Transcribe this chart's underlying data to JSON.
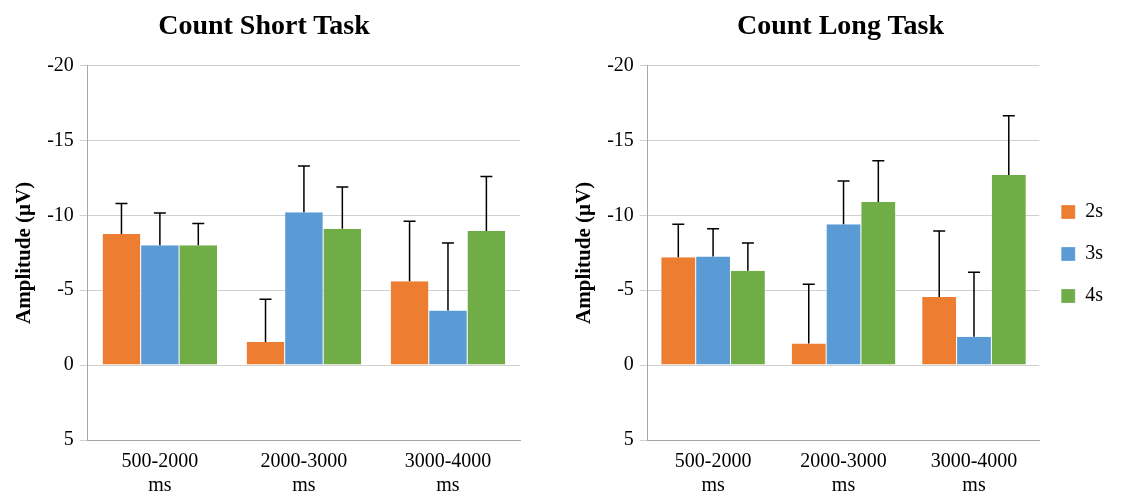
{
  "chart_data": [
    {
      "type": "bar",
      "title": "Count Short Task",
      "ylabel": "Amplitude (µV)",
      "categories": [
        "500-2000 ms",
        "2000-3000 ms",
        "3000-4000 ms"
      ],
      "series": [
        {
          "color": "#ed7d31",
          "values": [
            -8.75,
            -1.55,
            -5.6
          ],
          "errors": [
            [
              -10.8,
              -8.75
            ],
            [
              -4.4,
              -1.55
            ],
            [
              -9.6,
              -5.6
            ]
          ]
        },
        {
          "color": "#5b9bd5",
          "values": [
            -8.0,
            -10.2,
            -3.65
          ],
          "errors": [
            [
              -10.15,
              -8.0
            ],
            [
              -13.3,
              -10.2
            ],
            [
              -8.15,
              -3.65
            ]
          ]
        },
        {
          "color": "#70ad47",
          "values": [
            -8.0,
            -9.1,
            -8.95
          ],
          "errors": [
            [
              -9.45,
              -8.0
            ],
            [
              -11.9,
              -9.1
            ],
            [
              -12.6,
              -8.95
            ]
          ]
        }
      ],
      "ylim": [
        5,
        -20
      ],
      "yticks": [
        5,
        0,
        -5,
        -10,
        -15,
        -20
      ],
      "grid": "y",
      "legend": false
    },
    {
      "type": "bar",
      "title": "Count Long Task",
      "ylabel": "Amplitude (µV)",
      "categories": [
        "500-2000 ms",
        "2000-3000 ms",
        "3000-4000 ms"
      ],
      "series": [
        {
          "name": "2s",
          "color": "#ed7d31",
          "values": [
            -7.2,
            -1.45,
            -4.55
          ],
          "errors": [
            [
              -9.4,
              -7.2
            ],
            [
              -5.4,
              -1.45
            ],
            [
              -8.95,
              -4.55
            ]
          ]
        },
        {
          "name": "3s",
          "color": "#5b9bd5",
          "values": [
            -7.25,
            -9.4,
            -1.9
          ],
          "errors": [
            [
              -9.1,
              -7.25
            ],
            [
              -12.3,
              -9.4
            ],
            [
              -6.2,
              -1.9
            ]
          ]
        },
        {
          "name": "4s",
          "color": "#70ad47",
          "values": [
            -6.3,
            -10.9,
            -12.7
          ],
          "errors": [
            [
              -8.15,
              -6.3
            ],
            [
              -13.65,
              -10.9
            ],
            [
              -16.65,
              -12.7
            ]
          ]
        }
      ],
      "ylim": [
        5,
        -20
      ],
      "yticks": [
        5,
        0,
        -5,
        -10,
        -15,
        -20
      ],
      "grid": "y",
      "legend": "right"
    }
  ]
}
